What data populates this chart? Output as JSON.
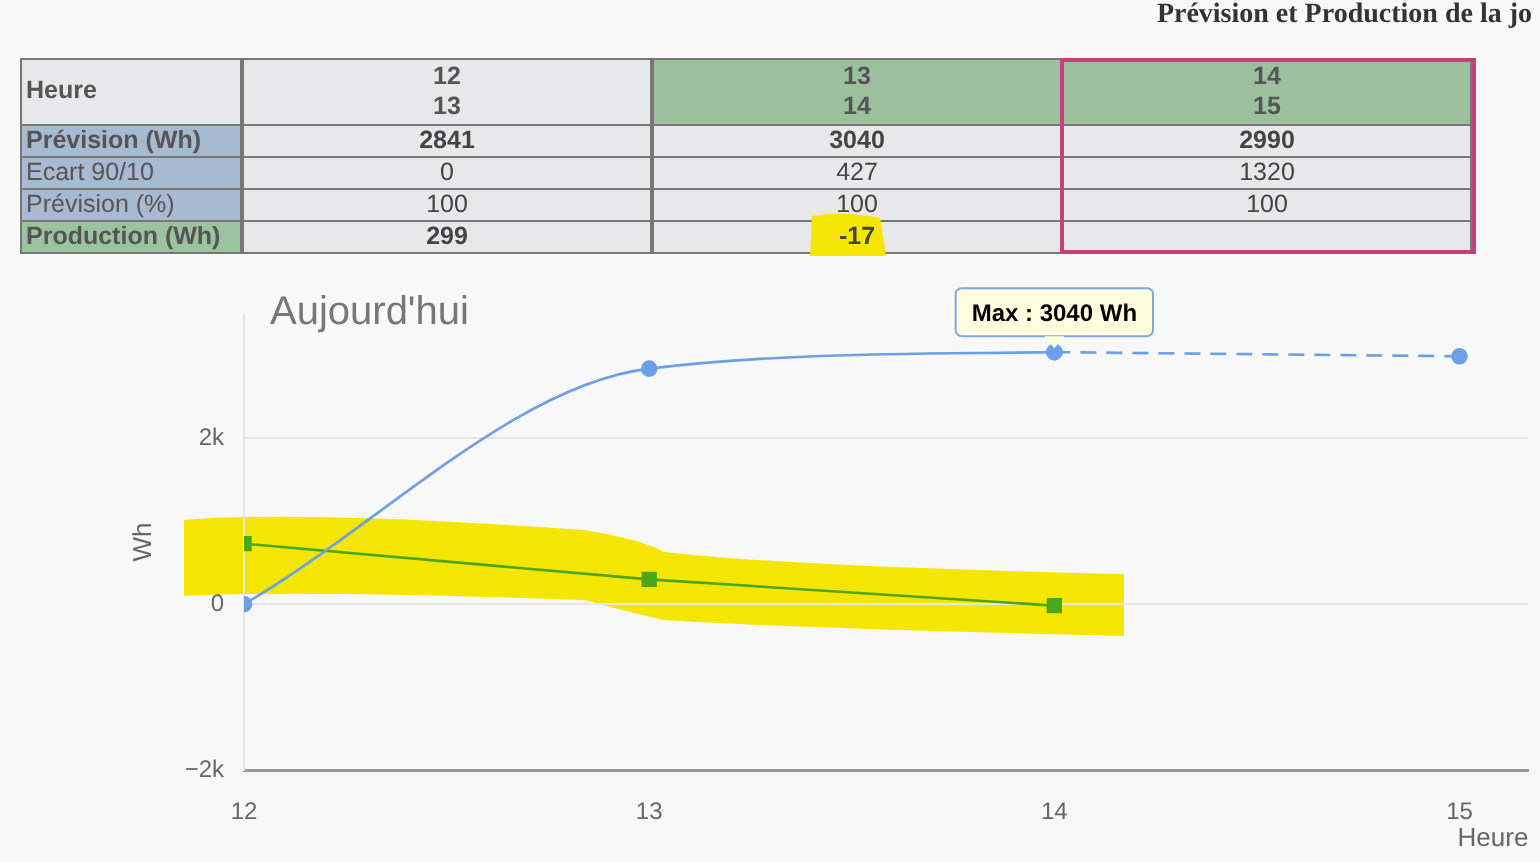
{
  "chart_data": {
    "type": "line",
    "title": "Prévision et Production de la jo",
    "subtitle": "Aujourd'hui",
    "xlabel": "Heure",
    "ylabel": "Wh",
    "xlim": [
      12,
      15.17
    ],
    "xticks": [
      12,
      13,
      14,
      15
    ],
    "ylim": [
      -2000,
      3500
    ],
    "yticks": [
      {
        "value": -2000,
        "label": "−2k"
      },
      0,
      {
        "value": 2000,
        "label": "2k"
      }
    ],
    "grid": "y",
    "series": [
      {
        "color": "#6ca0e6",
        "x": [
          12,
          13,
          14
        ],
        "values": [
          0,
          2841,
          3040
        ],
        "marker": "circle",
        "line_style": "solid"
      },
      {
        "color": "#6ca0e6",
        "x": [
          14,
          15
        ],
        "values": [
          3040,
          2990
        ],
        "marker": "circle",
        "line_style": "dashed"
      },
      {
        "color": "#4aa818",
        "x": [
          12,
          13,
          14
        ],
        "values": [
          730,
          299,
          -17
        ],
        "marker": "square",
        "line_style": "solid"
      }
    ],
    "annotations": [
      {
        "text": "Max : 3040 Wh",
        "x": 14,
        "y": 3040
      },
      "Heure",
      "12\n13",
      "13\n14",
      "14\n15",
      "Prévision (Wh)",
      "2841",
      "3040",
      "2990",
      "Ecart 90/10",
      "0",
      "427",
      "1320",
      "Prévision (%)",
      "100",
      "100",
      "100",
      "Production (Wh)",
      "299",
      "-17"
    ]
  }
}
